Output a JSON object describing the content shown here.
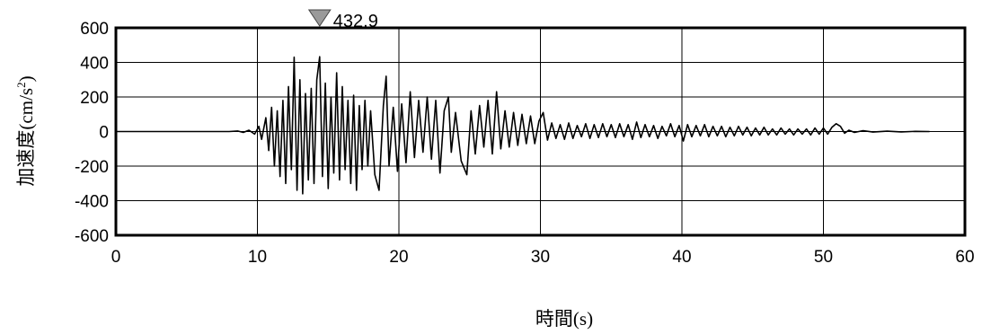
{
  "chart_data": {
    "type": "line",
    "xlabel": "時間(s)",
    "ylabel_main": "加速度(cm/s",
    "ylabel_sup": "2",
    "ylabel_close": ")",
    "xlim": [
      0,
      60
    ],
    "ylim": [
      -600,
      600
    ],
    "x_ticks": [
      "0",
      "10",
      "20",
      "30",
      "40",
      "50",
      "60"
    ],
    "y_ticks": [
      "600",
      "400",
      "200",
      "0",
      "-200",
      "-400",
      "-600"
    ],
    "grid": true,
    "peak_marker": {
      "x": 14.4,
      "label": "432.9"
    },
    "series": [
      {
        "values": [
          [
            0,
            0
          ],
          [
            8,
            0
          ],
          [
            8.6,
            3
          ],
          [
            9.0,
            -5
          ],
          [
            9.4,
            8
          ],
          [
            9.8,
            -15
          ],
          [
            10.1,
            30
          ],
          [
            10.3,
            -45
          ],
          [
            10.6,
            80
          ],
          [
            10.8,
            -110
          ],
          [
            11.0,
            140
          ],
          [
            11.2,
            -200
          ],
          [
            11.4,
            120
          ],
          [
            11.6,
            -260
          ],
          [
            11.8,
            180
          ],
          [
            12.0,
            -300
          ],
          [
            12.2,
            260
          ],
          [
            12.4,
            -220
          ],
          [
            12.6,
            430
          ],
          [
            12.8,
            -340
          ],
          [
            13.0,
            300
          ],
          [
            13.2,
            -360
          ],
          [
            13.4,
            220
          ],
          [
            13.6,
            -280
          ],
          [
            13.8,
            250
          ],
          [
            14.0,
            -300
          ],
          [
            14.2,
            300
          ],
          [
            14.4,
            432.9
          ],
          [
            14.6,
            -260
          ],
          [
            14.8,
            280
          ],
          [
            15.0,
            -330
          ],
          [
            15.2,
            200
          ],
          [
            15.4,
            -240
          ],
          [
            15.6,
            340
          ],
          [
            15.8,
            -280
          ],
          [
            16.0,
            260
          ],
          [
            16.2,
            -220
          ],
          [
            16.4,
            180
          ],
          [
            16.6,
            -300
          ],
          [
            16.8,
            210
          ],
          [
            17.0,
            -340
          ],
          [
            17.2,
            150
          ],
          [
            17.4,
            -220
          ],
          [
            17.6,
            180
          ],
          [
            17.8,
            -200
          ],
          [
            18.0,
            120
          ],
          [
            18.3,
            -250
          ],
          [
            18.6,
            -340
          ],
          [
            18.9,
            150
          ],
          [
            19.1,
            320
          ],
          [
            19.3,
            -200
          ],
          [
            19.6,
            140
          ],
          [
            19.9,
            -230
          ],
          [
            20.2,
            160
          ],
          [
            20.5,
            -180
          ],
          [
            20.8,
            230
          ],
          [
            21.1,
            -150
          ],
          [
            21.4,
            180
          ],
          [
            21.7,
            -120
          ],
          [
            22.0,
            200
          ],
          [
            22.3,
            -160
          ],
          [
            22.6,
            180
          ],
          [
            22.9,
            -240
          ],
          [
            23.2,
            120
          ],
          [
            23.5,
            200
          ],
          [
            23.7,
            -120
          ],
          [
            24.0,
            110
          ],
          [
            24.4,
            -170
          ],
          [
            24.8,
            -250
          ],
          [
            25.1,
            120
          ],
          [
            25.4,
            -130
          ],
          [
            25.7,
            150
          ],
          [
            26.0,
            -90
          ],
          [
            26.3,
            180
          ],
          [
            26.6,
            -130
          ],
          [
            26.9,
            230
          ],
          [
            27.2,
            -100
          ],
          [
            27.5,
            120
          ],
          [
            27.8,
            -90
          ],
          [
            28.1,
            110
          ],
          [
            28.4,
            -80
          ],
          [
            28.7,
            100
          ],
          [
            29.0,
            -70
          ],
          [
            29.3,
            90
          ],
          [
            29.6,
            -70
          ],
          [
            29.9,
            60
          ],
          [
            30.2,
            110
          ],
          [
            30.5,
            -50
          ],
          [
            30.8,
            50
          ],
          [
            31.1,
            -40
          ],
          [
            31.4,
            40
          ],
          [
            31.7,
            -45
          ],
          [
            32.0,
            50
          ],
          [
            32.3,
            -40
          ],
          [
            32.6,
            35
          ],
          [
            32.9,
            -30
          ],
          [
            33.2,
            45
          ],
          [
            33.5,
            -40
          ],
          [
            33.8,
            40
          ],
          [
            34.1,
            -35
          ],
          [
            34.4,
            45
          ],
          [
            34.7,
            -30
          ],
          [
            35.0,
            40
          ],
          [
            35.3,
            -35
          ],
          [
            35.6,
            45
          ],
          [
            35.9,
            -30
          ],
          [
            36.2,
            40
          ],
          [
            36.5,
            -45
          ],
          [
            36.8,
            55
          ],
          [
            37.1,
            -35
          ],
          [
            37.4,
            40
          ],
          [
            37.7,
            -30
          ],
          [
            38.0,
            35
          ],
          [
            38.3,
            -40
          ],
          [
            38.6,
            30
          ],
          [
            38.9,
            -25
          ],
          [
            39.2,
            45
          ],
          [
            39.5,
            -30
          ],
          [
            39.8,
            35
          ],
          [
            40.1,
            -55
          ],
          [
            40.4,
            40
          ],
          [
            40.7,
            -30
          ],
          [
            41.0,
            35
          ],
          [
            41.3,
            -25
          ],
          [
            41.6,
            40
          ],
          [
            41.9,
            -30
          ],
          [
            42.2,
            30
          ],
          [
            42.5,
            -25
          ],
          [
            42.8,
            30
          ],
          [
            43.1,
            -30
          ],
          [
            43.4,
            25
          ],
          [
            43.7,
            -25
          ],
          [
            44.0,
            30
          ],
          [
            44.3,
            -20
          ],
          [
            44.6,
            25
          ],
          [
            44.9,
            -25
          ],
          [
            45.2,
            20
          ],
          [
            45.5,
            -20
          ],
          [
            45.8,
            25
          ],
          [
            46.1,
            -20
          ],
          [
            46.4,
            15
          ],
          [
            46.7,
            -20
          ],
          [
            47.0,
            20
          ],
          [
            47.3,
            -15
          ],
          [
            47.6,
            15
          ],
          [
            47.9,
            -20
          ],
          [
            48.2,
            15
          ],
          [
            48.5,
            -15
          ],
          [
            48.8,
            15
          ],
          [
            49.1,
            -20
          ],
          [
            49.4,
            20
          ],
          [
            49.7,
            -15
          ],
          [
            50.0,
            20
          ],
          [
            50.3,
            -15
          ],
          [
            50.6,
            25
          ],
          [
            50.9,
            45
          ],
          [
            51.2,
            30
          ],
          [
            51.5,
            -10
          ],
          [
            51.8,
            8
          ],
          [
            52.2,
            -5
          ],
          [
            52.8,
            5
          ],
          [
            53.5,
            -3
          ],
          [
            54.5,
            2
          ],
          [
            55.5,
            -2
          ],
          [
            56.5,
            1
          ],
          [
            57.5,
            0
          ]
        ]
      }
    ]
  }
}
